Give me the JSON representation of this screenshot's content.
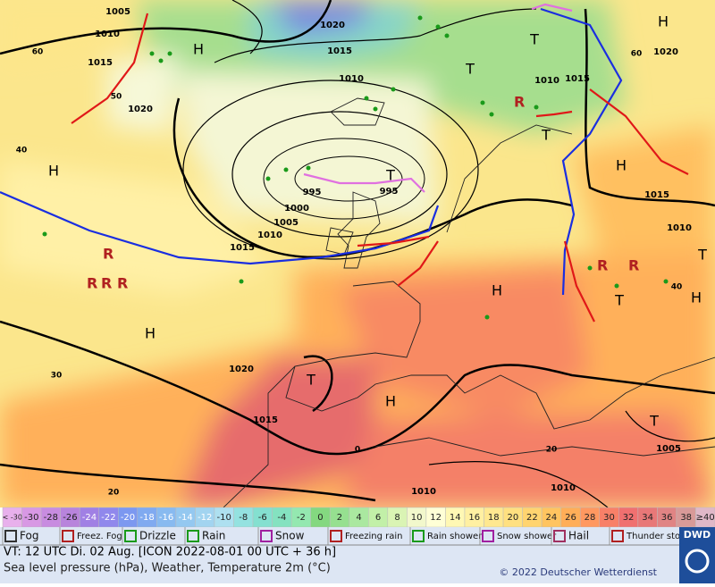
{
  "map": {
    "labels": [
      "1005",
      "1010",
      "1015",
      "1020",
      "1020",
      "1015",
      "1010",
      "995",
      "995",
      "1000",
      "1005",
      "1010",
      "1015",
      "1020",
      "1015",
      "1010",
      "1010",
      "1005",
      "1010",
      "1015",
      "1020",
      "1010",
      "1015",
      "H",
      "H",
      "H",
      "H",
      "H",
      "H",
      "H",
      "H",
      "T",
      "T",
      "T",
      "T",
      "T",
      "T",
      "T",
      "T",
      "60",
      "50",
      "40",
      "30",
      "20",
      "0",
      "20",
      "60",
      "40"
    ]
  },
  "temperature_scale": {
    "labels": [
      "< -30",
      "-30",
      "-28",
      "-26",
      "-24",
      "-22",
      "-20",
      "-18",
      "-16",
      "-14",
      "-12",
      "-10",
      "-8",
      "-6",
      "-4",
      "-2",
      "0",
      "2",
      "4",
      "6",
      "8",
      "10",
      "12",
      "14",
      "16",
      "18",
      "20",
      "22",
      "24",
      "26",
      "28",
      "30",
      "32",
      "34",
      "36",
      "38",
      "≥40"
    ],
    "colors": [
      "#e8b0ec",
      "#d898e4",
      "#c88ce0",
      "#b884dc",
      "#a080e4",
      "#9088ec",
      "#7c98f0",
      "#80aaf0",
      "#88baf0",
      "#94c8f0",
      "#a2d4f0",
      "#aee0f0",
      "#94e2e0",
      "#84e0d0",
      "#84e2c0",
      "#94e8b0",
      "#84d880",
      "#96e090",
      "#aae8a0",
      "#c2f0a8",
      "#daf4b4",
      "#f2f8cc",
      "#ffffd6",
      "#fff8b4",
      "#fff0a2",
      "#ffe890",
      "#ffe080",
      "#ffd470",
      "#ffc460",
      "#ffae58",
      "#ff9860",
      "#f88068",
      "#f07070",
      "#e87878",
      "#e08484",
      "#d89a98",
      "#e0b8c8"
    ]
  },
  "legend": {
    "items": [
      "Fog",
      "Freez. Fog",
      "Drizzle",
      "Rain",
      "Snow",
      "Freezing rain",
      "Rain shower",
      "Snow shower",
      "Hail",
      "Thunder storm"
    ],
    "logo": "DWD"
  },
  "footer": {
    "valid_time": "VT: 12 UTC Di.  02 Aug. [ICON 2022-08-01  00 UTC + 36 h]",
    "description": "Sea level pressure (hPa), Weather, Temperature 2m (°C)",
    "copyright": "© 2022 Deutscher Wetterdienst"
  }
}
